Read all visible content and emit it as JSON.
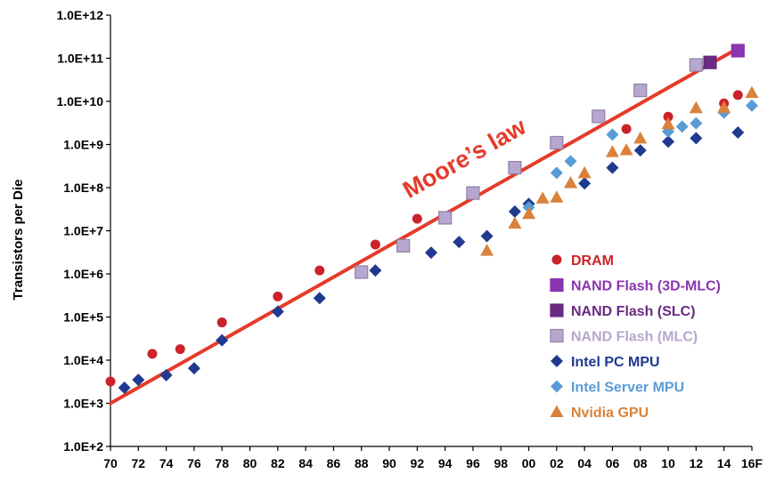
{
  "chart_data": {
    "type": "scatter",
    "title": "",
    "xlabel": "",
    "ylabel": "Transistors per Die",
    "yscale": "log",
    "ylim": [
      100,
      1000000000000
    ],
    "xlim": [
      1970,
      2016
    ],
    "y_tick_labels": [
      "1.0E+2",
      "1.0E+3",
      "1.0E+4",
      "1.0E+5",
      "1.0E+6",
      "1.0E+7",
      "1.0E+8",
      "1.0E+9",
      "1.0E+10",
      "1.0E+11",
      "1.0E+12"
    ],
    "x_tick_labels": [
      "70",
      "72",
      "74",
      "76",
      "78",
      "80",
      "82",
      "84",
      "86",
      "88",
      "90",
      "92",
      "94",
      "96",
      "98",
      "00",
      "02",
      "04",
      "06",
      "08",
      "10",
      "12",
      "14",
      "16F"
    ],
    "grid": false,
    "legend_position": "right",
    "annotation": {
      "text": "Moore’s law",
      "color": "#e53b2a"
    },
    "trend_line": {
      "name": "Moore’s law",
      "color": "#e53b2a",
      "x": [
        1970,
        2015
      ],
      "y": [
        1000,
        170000000000
      ]
    },
    "series": [
      {
        "name": "DRAM",
        "marker": "circle",
        "color": "#cc2229",
        "x": [
          1970,
          1973,
          1975,
          1978,
          1982,
          1985,
          1989,
          1992,
          2007,
          2010,
          2014,
          2015
        ],
        "y": [
          3200,
          14000,
          18000,
          75000,
          300000,
          1200000,
          4800000,
          19000000,
          2300000000,
          4400000000,
          9000000000,
          14000000000
        ]
      },
      {
        "name": "NAND Flash (3D-MLC)",
        "marker": "square",
        "color": "#8c35b0",
        "x": [
          2015
        ],
        "y": [
          150000000000
        ]
      },
      {
        "name": "NAND Flash (SLC)",
        "marker": "square",
        "color": "#6a2a80",
        "x": [
          2013
        ],
        "y": [
          80000000000
        ]
      },
      {
        "name": "NAND Flash (MLC)",
        "marker": "square",
        "color": "#b7a7cf",
        "x": [
          1988,
          1991,
          1994,
          1996,
          1999,
          2002,
          2005,
          2008,
          2012
        ],
        "y": [
          1100000,
          4500000,
          20000000,
          75000000,
          290000000,
          1100000000,
          4500000000,
          18000000000,
          70000000000
        ]
      },
      {
        "name": "Intel PC MPU",
        "marker": "diamond",
        "color": "#1f3a8f",
        "x": [
          1971,
          1972,
          1974,
          1976,
          1978,
          1982,
          1985,
          1989,
          1993,
          1995,
          1997,
          1999,
          2000,
          2004,
          2006,
          2008,
          2010,
          2012,
          2015
        ],
        "y": [
          2300,
          3500,
          4500,
          6500,
          29000,
          134000,
          275000,
          1200000,
          3100000,
          5500000,
          7500000,
          28000000,
          42000000,
          125000000,
          290000000,
          730000000,
          1170000000,
          1400000000,
          1900000000
        ]
      },
      {
        "name": "Intel Server MPU",
        "marker": "diamond",
        "color": "#5b9bd5",
        "x": [
          2000,
          2002,
          2003,
          2006,
          2010,
          2011,
          2012,
          2014,
          2016
        ],
        "y": [
          35000000,
          220000000,
          410000000,
          1700000000,
          2000000000,
          2600000000,
          3100000000,
          5500000000,
          8000000000
        ]
      },
      {
        "name": "Nvidia GPU",
        "marker": "triangle",
        "color": "#d9823b",
        "x": [
          1997,
          1999,
          2000,
          2001,
          2002,
          2003,
          2004,
          2006,
          2007,
          2008,
          2010,
          2012,
          2014,
          2016
        ],
        "y": [
          3500000,
          15000000,
          25000000,
          57000000,
          60000000,
          130000000,
          220000000,
          680000000,
          750000000,
          1400000000,
          3000000000,
          7100000000,
          7200000000,
          16000000000
        ]
      }
    ]
  }
}
